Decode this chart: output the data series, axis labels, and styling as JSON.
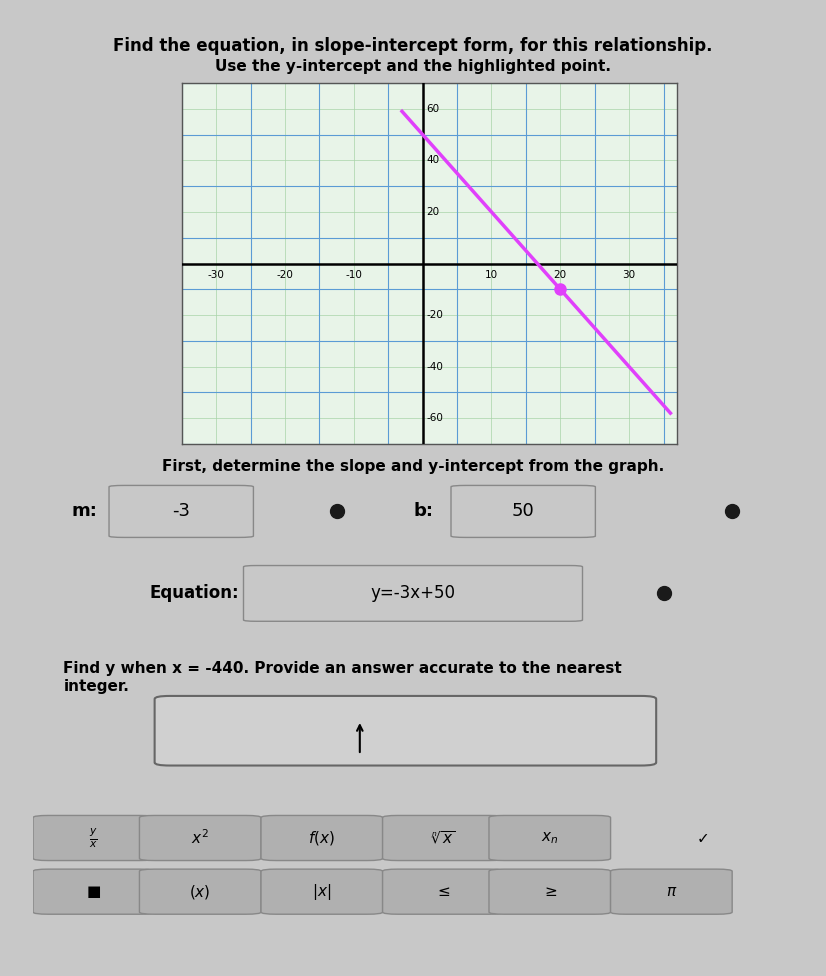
{
  "title_line1": "Find the equation, in slope-intercept form, for this relationship.",
  "title_line2": "Use the y-intercept and the highlighted point.",
  "instruction1": "First, determine the slope and y-intercept from the graph.",
  "m_label": "m:",
  "m_value": "-3",
  "b_label": "b:",
  "b_value": "50",
  "eq_label": "Equation:",
  "eq_value": "y=-3x+50",
  "find_y_text": "Find y when x = -440. Provide an answer accurate to the nearest\ninteger.",
  "slope": -3,
  "y_intercept": 50,
  "x_start": -3,
  "x_end": 36,
  "line_color": "#e040fb",
  "highlight_point_x": 20,
  "highlight_point_y": -10,
  "grid_color_major": "#5b9bd5",
  "grid_color_minor": "#a8d4a8",
  "graph_bg": "#e8f4e8",
  "x_ticks": [
    -30,
    -20,
    -10,
    10,
    20,
    30
  ],
  "y_ticks": [
    -60,
    -40,
    -20,
    20,
    40,
    60
  ],
  "xlim": [
    -35,
    37
  ],
  "ylim": [
    -70,
    70
  ],
  "x_tick_spacing": 5,
  "y_tick_spacing": 10,
  "bg_color": "#c8c8c8",
  "text_color": "#000000",
  "box_color": "#a0a0a0",
  "dot_color": "#1a1a1a",
  "input_box_color": "#d8d8d8",
  "symbol_bar_color": "#b0b0b0",
  "toolbar_color": "#b8b8b8"
}
